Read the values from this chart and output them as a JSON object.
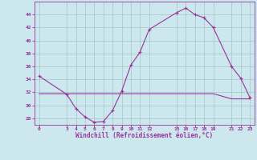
{
  "xlabel": "Windchill (Refroidissement éolien,°C)",
  "x_values": [
    0,
    3,
    4,
    5,
    6,
    7,
    8,
    9,
    10,
    11,
    12,
    15,
    16,
    17,
    18,
    19,
    21,
    22,
    23
  ],
  "y_line1": [
    34.5,
    31.7,
    29.5,
    28.2,
    27.4,
    27.5,
    29.2,
    32.2,
    36.2,
    38.2,
    41.7,
    44.3,
    45.0,
    44.0,
    43.5,
    42.0,
    36.0,
    34.2,
    31.2
  ],
  "y_line2": [
    31.8,
    31.8,
    31.8,
    31.8,
    31.8,
    31.8,
    31.8,
    31.8,
    31.8,
    31.8,
    31.8,
    31.8,
    31.8,
    31.8,
    31.8,
    31.8,
    31.0,
    31.0,
    31.0
  ],
  "line_color": "#993399",
  "bg_color": "#cce8ee",
  "grid_color": "#aacccc",
  "yticks": [
    28,
    30,
    32,
    34,
    36,
    38,
    40,
    42,
    44
  ],
  "xticks": [
    0,
    3,
    4,
    5,
    6,
    7,
    8,
    9,
    10,
    11,
    12,
    15,
    16,
    17,
    18,
    19,
    21,
    22,
    23
  ],
  "ylim": [
    27.0,
    46.0
  ],
  "xlim": [
    -0.5,
    23.5
  ]
}
